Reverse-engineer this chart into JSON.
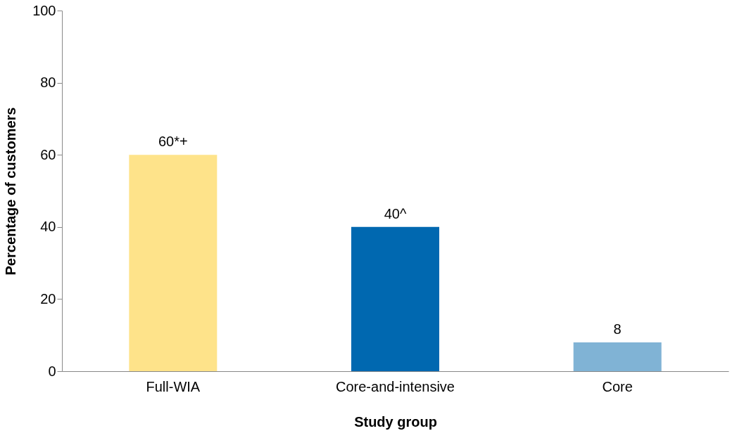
{
  "chart_data": {
    "type": "bar",
    "xlabel": "Study group",
    "ylabel": "Percentage of customers",
    "categories": [
      "Full-WIA",
      "Core-and-intensive",
      "Core"
    ],
    "values": [
      60,
      40,
      8
    ],
    "colors": [
      "#fee38a",
      "#0068b0",
      "#80b3d5"
    ],
    "value_labels": [
      "60*+",
      "40^",
      "8"
    ],
    "ylim": [
      0,
      100
    ],
    "yticks": [
      0,
      20,
      40,
      60,
      80,
      100
    ],
    "grid": false
  }
}
